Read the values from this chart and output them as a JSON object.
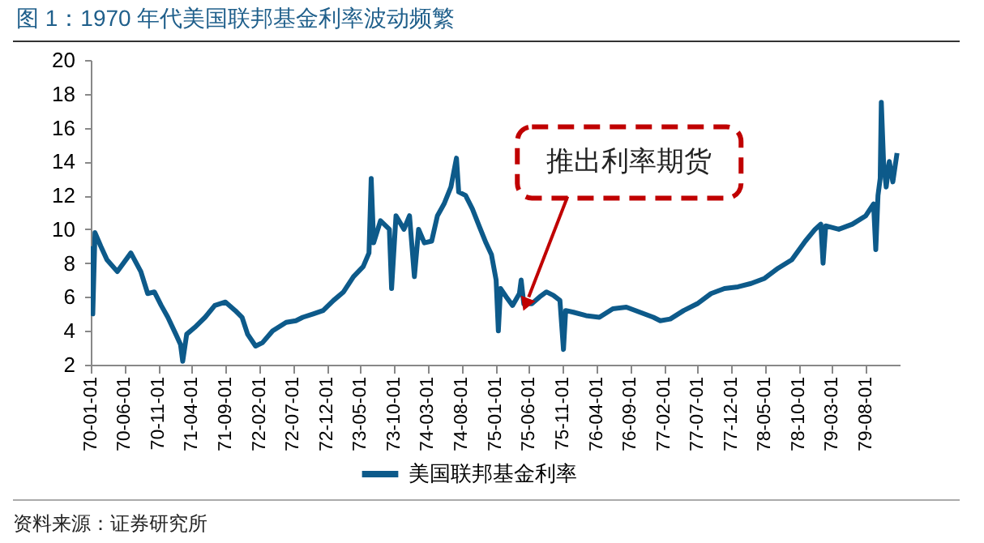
{
  "chart_data": {
    "type": "line",
    "title": "图 1：1970 年代美国联邦基金利率波动频繁",
    "x": [
      "1970-01-01",
      "1970-01-10",
      "1970-01-20",
      "1970-02-15",
      "1970-03-15",
      "1970-05-01",
      "1970-07-01",
      "1970-08-15",
      "1970-09-15",
      "1970-10-15",
      "1970-11-15",
      "1970-12-15",
      "1971-01-20",
      "1971-02-10",
      "1971-02-20",
      "1971-03-10",
      "1971-04-15",
      "1971-06-01",
      "1971-07-15",
      "1971-09-01",
      "1971-10-15",
      "1971-11-15",
      "1971-12-10",
      "1972-01-15",
      "1972-02-15",
      "1972-04-01",
      "1972-06-01",
      "1972-07-15",
      "1972-08-15",
      "1972-10-01",
      "1972-11-15",
      "1973-01-01",
      "1973-02-15",
      "1973-04-01",
      "1973-05-15",
      "1973-06-10",
      "1973-06-20",
      "1973-07-01",
      "1973-08-01",
      "1973-09-10",
      "1973-09-20",
      "1973-10-10",
      "1973-11-15",
      "1973-12-10",
      "1974-01-01",
      "1974-01-20",
      "1974-02-15",
      "1974-03-20",
      "1974-04-15",
      "1974-05-15",
      "1974-06-15",
      "1974-07-10",
      "1974-07-20",
      "1974-08-20",
      "1974-09-20",
      "1974-10-20",
      "1974-11-20",
      "1974-12-15",
      "1975-01-05",
      "1975-01-15",
      "1975-01-25",
      "1975-02-20",
      "1975-03-20",
      "1975-04-20",
      "1975-04-28",
      "1975-05-10",
      "1975-06-15",
      "1975-07-20",
      "1975-08-20",
      "1975-09-20",
      "1975-10-20",
      "1975-11-05",
      "1975-11-15",
      "1975-12-20",
      "1976-02-15",
      "1976-04-15",
      "1976-06-15",
      "1976-08-15",
      "1976-10-15",
      "1976-12-15",
      "1977-01-15",
      "1977-03-01",
      "1977-05-01",
      "1977-07-01",
      "1977-09-01",
      "1977-11-01",
      "1978-01-01",
      "1978-03-01",
      "1978-05-01",
      "1978-07-01",
      "1978-09-01",
      "1978-11-01",
      "1978-12-15",
      "1979-01-10",
      "1979-01-20",
      "1979-02-01",
      "1979-04-01",
      "1979-06-01",
      "1979-08-01",
      "1979-09-05",
      "1979-09-15",
      "1979-09-25",
      "1979-10-05",
      "1979-10-10",
      "1979-10-20",
      "1979-11-01",
      "1979-11-15",
      "1979-12-01",
      "1979-12-20"
    ],
    "series": [
      {
        "name": "美国联邦基金利率",
        "color": "#0d5a8a",
        "values": [
          9.0,
          5.0,
          9.8,
          9.0,
          8.2,
          7.5,
          8.6,
          7.5,
          6.2,
          6.3,
          5.5,
          4.8,
          3.8,
          3.2,
          2.2,
          3.8,
          4.2,
          4.8,
          5.5,
          5.7,
          5.2,
          4.8,
          3.8,
          3.1,
          3.3,
          4.0,
          4.5,
          4.6,
          4.8,
          5.0,
          5.2,
          5.8,
          6.3,
          7.2,
          7.8,
          8.6,
          13.0,
          9.2,
          10.5,
          10.0,
          6.5,
          10.8,
          10.0,
          10.8,
          7.2,
          10.0,
          9.2,
          9.3,
          10.8,
          11.5,
          12.5,
          14.2,
          12.2,
          12.0,
          11.2,
          10.2,
          9.2,
          8.5,
          7.0,
          4.0,
          6.5,
          6.0,
          5.5,
          6.2,
          7.0,
          5.6,
          5.6,
          6.0,
          6.3,
          6.1,
          5.8,
          2.9,
          5.2,
          5.1,
          4.9,
          4.8,
          5.3,
          5.4,
          5.1,
          4.8,
          4.6,
          4.7,
          5.2,
          5.6,
          6.2,
          6.5,
          6.6,
          6.8,
          7.1,
          7.7,
          8.2,
          9.3,
          10.0,
          10.3,
          8.0,
          10.2,
          10.0,
          10.3,
          10.8,
          11.5,
          8.8,
          12.0,
          13.0,
          17.5,
          14.0,
          12.5,
          14.0,
          12.8,
          14.5
        ]
      }
    ],
    "xlim": [
      "1970-01-01",
      "1980-01-01"
    ],
    "xticks": [
      {
        "value": "1970-01-01",
        "label": "70-01-01"
      },
      {
        "value": "1970-06-01",
        "label": "70-06-01"
      },
      {
        "value": "1970-11-01",
        "label": "70-11-01"
      },
      {
        "value": "1971-04-01",
        "label": "71-04-01"
      },
      {
        "value": "1971-09-01",
        "label": "71-09-01"
      },
      {
        "value": "1972-02-01",
        "label": "72-02-01"
      },
      {
        "value": "1972-07-01",
        "label": "72-07-01"
      },
      {
        "value": "1972-12-01",
        "label": "72-12-01"
      },
      {
        "value": "1973-05-01",
        "label": "73-05-01"
      },
      {
        "value": "1973-10-01",
        "label": "73-10-01"
      },
      {
        "value": "1974-03-01",
        "label": "74-03-01"
      },
      {
        "value": "1974-08-01",
        "label": "74-08-01"
      },
      {
        "value": "1975-01-01",
        "label": "75-01-01"
      },
      {
        "value": "1975-06-01",
        "label": "75-06-01"
      },
      {
        "value": "1975-11-01",
        "label": "75-11-01"
      },
      {
        "value": "1976-04-01",
        "label": "76-04-01"
      },
      {
        "value": "1976-09-01",
        "label": "76-09-01"
      },
      {
        "value": "1977-02-01",
        "label": "77-02-01"
      },
      {
        "value": "1977-07-01",
        "label": "77-07-01"
      },
      {
        "value": "1977-12-01",
        "label": "77-12-01"
      },
      {
        "value": "1978-05-01",
        "label": "78-05-01"
      },
      {
        "value": "1978-10-01",
        "label": "78-10-01"
      },
      {
        "value": "1979-03-01",
        "label": "79-03-01"
      },
      {
        "value": "1979-08-01",
        "label": "79-08-01"
      }
    ],
    "ylim": [
      2,
      20
    ],
    "yticks": [
      2,
      4,
      6,
      8,
      10,
      12,
      14,
      16,
      18,
      20
    ],
    "grid": false,
    "legend": "bottom",
    "annotations": [
      {
        "text": "推出利率期货",
        "x": "1975-06-01",
        "y": 6
      },
      "资料来源：证券研究所"
    ]
  }
}
